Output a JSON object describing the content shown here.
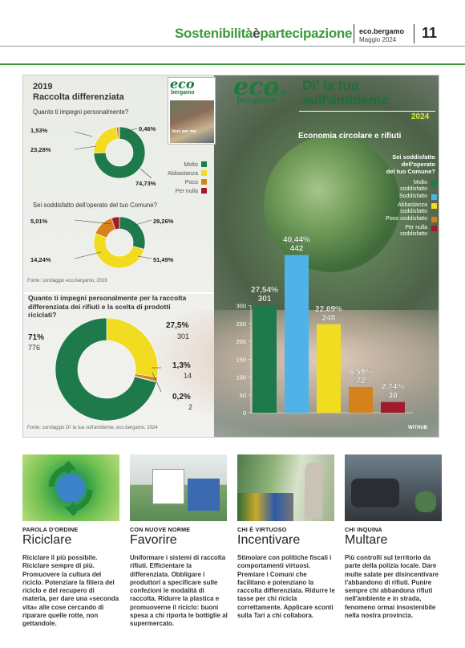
{
  "header": {
    "title_a": "Sostenibilità",
    "title_b": "è",
    "title_c": "partecipazione",
    "pub": "eco.bergamo",
    "date": "Maggio 2024",
    "page_number": "11"
  },
  "survey2019": {
    "year": "2019",
    "title": "Raccolta differenziata",
    "q1": "Quanto ti impegni personalmente?",
    "q1_values": {
      "molto": "74,73%",
      "abbastanza": "23,28%",
      "poco": "1,53%",
      "per_nulla": "0,46%"
    },
    "q2": "Sei soddisfatto dell'operato del tuo Comune?",
    "q2_values": {
      "molto": "29,26%",
      "abbastanza": "51,49%",
      "poco": "14,24%",
      "per_nulla": "5,01%"
    },
    "legend": [
      "Molto",
      "Abbastanza",
      "Poco",
      "Per nulla"
    ],
    "source": "Fonte: sondaggio eco.bergamo, 2019"
  },
  "cover": {
    "logo": "eco",
    "logo_sub": "bergamo",
    "caption": "Voci per me"
  },
  "brand": {
    "eco": "eco.",
    "bergamo": "bergamo",
    "title_line1": "Di' la tua",
    "title_line2": "sull'ambiente",
    "year": "2024",
    "subtitle": "Economia circolare e rifiuti"
  },
  "survey2024_pie": {
    "question": "Quanto ti impegni personalmente per la raccolta differenziata dei rifiuti e la scelta di prodotti riciclati?",
    "slices": [
      {
        "pct": "71%",
        "count": "776"
      },
      {
        "pct": "27,5%",
        "count": "301"
      },
      {
        "pct": "1,3%",
        "count": "14"
      },
      {
        "pct": "0,2%",
        "count": "2"
      }
    ],
    "source": "Fonte: sondaggio Di' la tua sull'ambiente, eco.bergamo, 2024"
  },
  "bar_chart": {
    "question_l1": "Sei soddisfatto",
    "question_l2": "dell'operato",
    "question_l3": "del tuo Comune?",
    "legend": [
      {
        "l1": "Molto",
        "l2": "soddisfatto",
        "color": "#1e7a4a"
      },
      {
        "l1": "Soddisfatto",
        "l2": "",
        "color": "#4fb3e8"
      },
      {
        "l1": "Abbastanza",
        "l2": "soddisfatto",
        "color": "#f2dc22"
      },
      {
        "l1": "Poco soddisfatto",
        "l2": "",
        "color": "#d6821c"
      },
      {
        "l1": "Per nulla",
        "l2": "soddisfatto",
        "color": "#a01c2c"
      }
    ],
    "credit": "WITHUB"
  },
  "chart_data": [
    {
      "type": "pie",
      "title": "Quanto ti impegni personalmente?",
      "categories": [
        "Molto",
        "Abbastanza",
        "Poco",
        "Per nulla"
      ],
      "values": [
        74.73,
        23.28,
        1.53,
        0.46
      ],
      "colors": [
        "#1e7a4a",
        "#f2dc22",
        "#d6821c",
        "#a01c2c"
      ]
    },
    {
      "type": "pie",
      "title": "Sei soddisfatto dell'operato del tuo Comune?",
      "categories": [
        "Molto",
        "Abbastanza",
        "Poco",
        "Per nulla"
      ],
      "values": [
        29.26,
        51.49,
        14.24,
        5.01
      ],
      "colors": [
        "#1e7a4a",
        "#f2dc22",
        "#d6821c",
        "#a01c2c"
      ]
    },
    {
      "type": "pie",
      "title": "Quanto ti impegni personalmente per la raccolta differenziata dei rifiuti e la scelta di prodotti riciclati?",
      "values": [
        71,
        27.5,
        1.3,
        0.2
      ],
      "counts": [
        776,
        301,
        14,
        2
      ],
      "colors": [
        "#1e7a4a",
        "#f2dc22",
        "#d6821c",
        "#a01c2c"
      ]
    },
    {
      "type": "bar",
      "title": "Sei soddisfatto dell'operato del tuo Comune?",
      "categories": [
        "Molto soddisfatto",
        "Soddisfatto",
        "Abbastanza soddisfatto",
        "Poco soddisfatto",
        "Per nulla soddisfatto"
      ],
      "values": [
        301,
        442,
        248,
        72,
        30
      ],
      "percent_labels": [
        "27,54%",
        "40,44%",
        "22,69%",
        "6,59%",
        "2,74%"
      ],
      "colors": [
        "#1e7a4a",
        "#4fb3e8",
        "#f2dc22",
        "#d6821c",
        "#a01c2c"
      ],
      "yticks": [
        0,
        50,
        100,
        150,
        200,
        250,
        300
      ],
      "ylim": [
        0,
        450
      ],
      "grid": false
    }
  ],
  "columns": [
    {
      "kicker": "PAROLA D'ORDINE",
      "word": "Riciclare",
      "body": "Riciclare il più possibile. Riciclare sempre di più. Promuovere la cultura del riciclo. Potenziare la filiera del riciclo e del recupero di materia, per dare una «seconda vita» alle cose cercando di riparare quelle rotte, non gettandole."
    },
    {
      "kicker": "CON NUOVE NORME",
      "word": "Favorire",
      "body": "Uniformare i sistemi di raccolta rifiuti. Efficientare la differenziata. Obbligare i produttori a specificare sulle confezioni le modalità di raccolta. Ridurre la plastica e promuoverne il riciclo: buoni spesa a chi riporta le bottiglie al supermercato."
    },
    {
      "kicker": "CHI È VIRTUOSO",
      "word": "Incentivare",
      "body": "Stimolare con politiche fiscali i comportamenti virtuosi. Premiare i Comuni che facilitano e potenziano la raccolta differenziata. Ridurre le tasse per chi ricicla correttamente. Applicare sconti sulla Tari a chi collabora."
    },
    {
      "kicker": "CHI INQUINA",
      "word": "Multare",
      "body": "Più controlli sul territorio da parte della polizia locale. Dare multe salate per disincentivare l'abbandono di rifiuti. Punire sempre chi abbandona rifiuti nell'ambiente e in strada, fenomeno ormai insostenibile nella nostra provincia."
    }
  ]
}
